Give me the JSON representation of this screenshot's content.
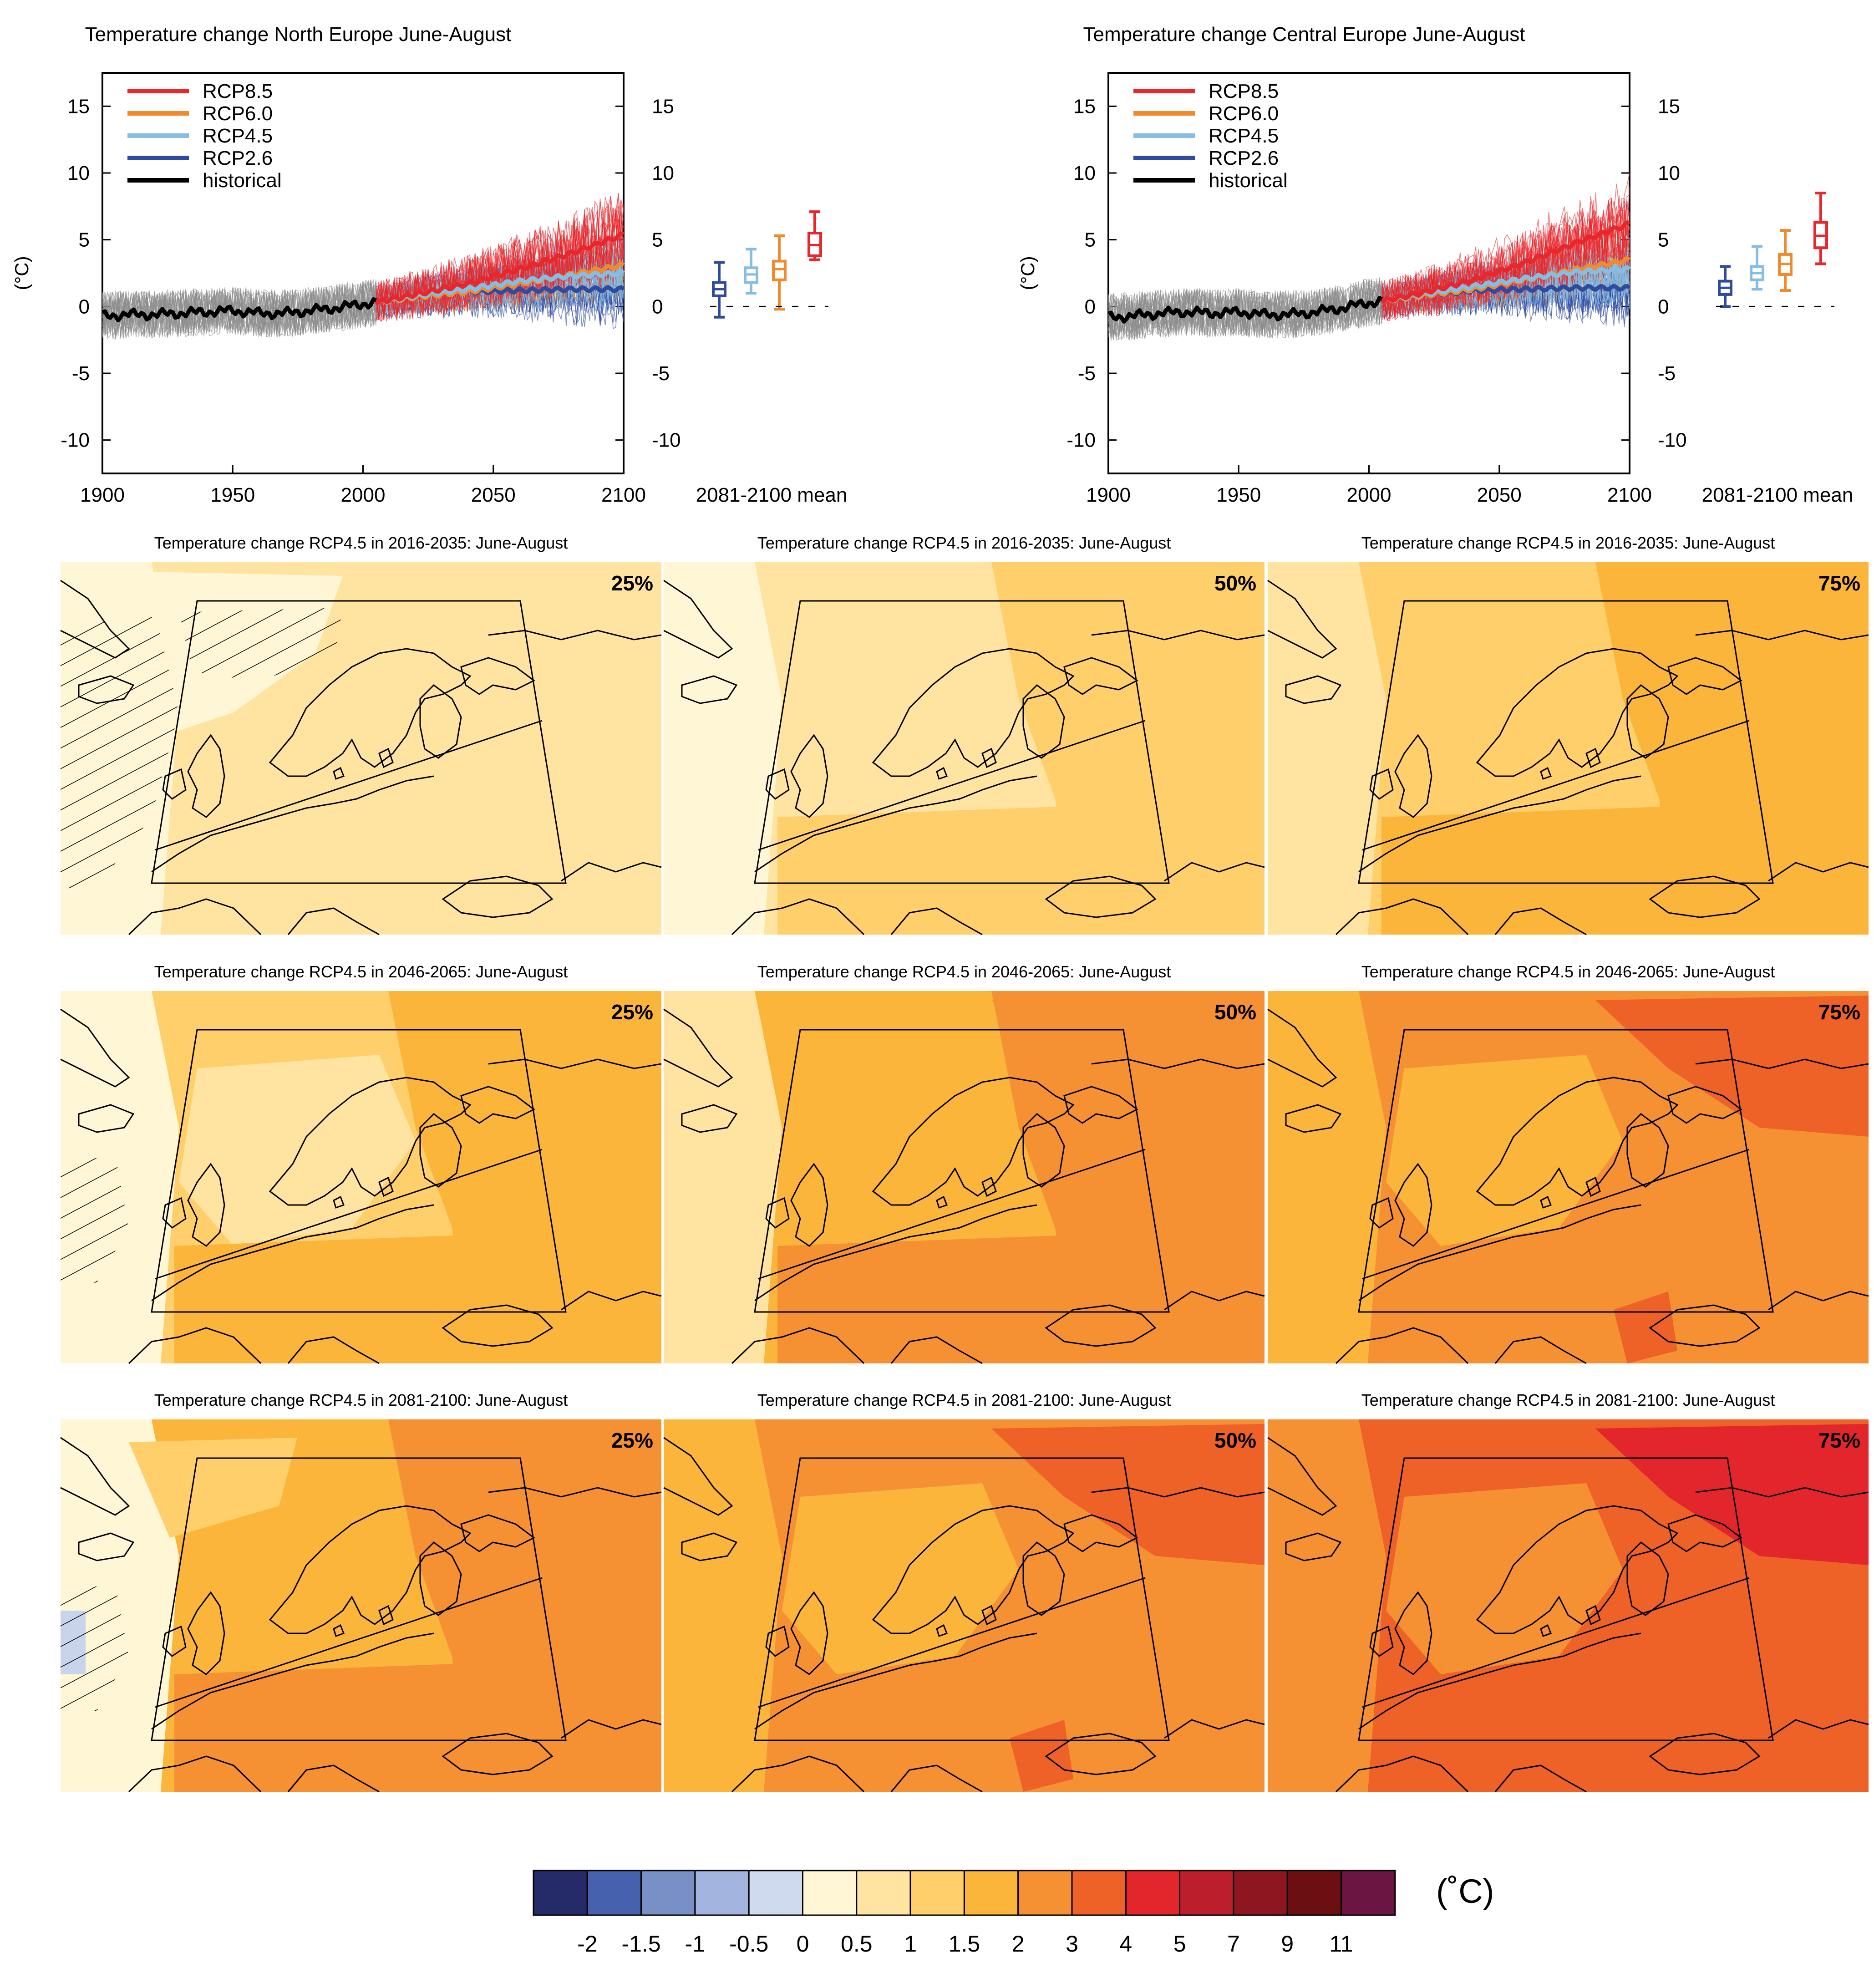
{
  "colors": {
    "rcp85": "#e8262b",
    "rcp60": "#f08a2c",
    "rcp45": "#86bde3",
    "rcp26": "#2f4ba0",
    "historical": "#000000",
    "hist_spread": "#8c8c8c"
  },
  "chart_data": [
    {
      "type": "line",
      "title": "Temperature change North Europe June-August",
      "ylabel": "(°C)",
      "xlim": [
        1900,
        2100
      ],
      "ylim": [
        -12.5,
        17.5
      ],
      "x_ticks": [
        "1900",
        "1950",
        "2000",
        "2050",
        "2100"
      ],
      "y_ticks": [
        "15",
        "10",
        "5",
        "0",
        "-5",
        "-10"
      ],
      "legend": [
        "RCP8.5",
        "RCP6.0",
        "RCP4.5",
        "RCP2.6",
        "historical"
      ],
      "legend_placement": "top-left",
      "boxplot_label": "2081-2100 mean",
      "series": [
        {
          "name": "historical",
          "x": [
            1900,
            1910,
            1920,
            1930,
            1940,
            1950,
            1960,
            1970,
            1980,
            1990,
            2000,
            2005
          ],
          "y": [
            -0.7,
            -0.6,
            -0.6,
            -0.5,
            -0.4,
            -0.3,
            -0.5,
            -0.5,
            -0.3,
            -0.1,
            0.2,
            0.3
          ]
        },
        {
          "name": "RCP2.6",
          "x": [
            2005,
            2020,
            2040,
            2060,
            2080,
            2100
          ],
          "y": [
            0.3,
            0.7,
            1.1,
            1.2,
            1.3,
            1.3
          ]
        },
        {
          "name": "RCP4.5",
          "x": [
            2005,
            2020,
            2040,
            2060,
            2080,
            2100
          ],
          "y": [
            0.3,
            0.8,
            1.3,
            1.9,
            2.3,
            2.5
          ]
        },
        {
          "name": "RCP6.0",
          "x": [
            2005,
            2020,
            2040,
            2060,
            2080,
            2100
          ],
          "y": [
            0.3,
            0.7,
            1.1,
            1.7,
            2.4,
            3.1
          ]
        },
        {
          "name": "RCP8.5",
          "x": [
            2005,
            2020,
            2040,
            2060,
            2080,
            2100
          ],
          "y": [
            0.3,
            0.9,
            1.7,
            2.8,
            4.0,
            5.4
          ]
        }
      ],
      "boxplots": [
        {
          "name": "RCP2.6",
          "min": -0.8,
          "q1": 0.8,
          "median": 1.3,
          "q3": 1.8,
          "max": 3.3
        },
        {
          "name": "RCP4.5",
          "min": 1.0,
          "q1": 1.8,
          "median": 2.4,
          "q3": 2.9,
          "max": 4.3
        },
        {
          "name": "RCP6.0",
          "min": -0.2,
          "q1": 2.0,
          "median": 2.8,
          "q3": 3.4,
          "max": 5.3
        },
        {
          "name": "RCP8.5",
          "min": 3.5,
          "q1": 3.8,
          "median": 4.6,
          "q3": 5.5,
          "max": 7.1
        }
      ]
    },
    {
      "type": "line",
      "title": "Temperature change Central Europe June-August",
      "ylabel": "(°C)",
      "xlim": [
        1900,
        2100
      ],
      "ylim": [
        -12.5,
        17.5
      ],
      "x_ticks": [
        "1900",
        "1950",
        "2000",
        "2050",
        "2100"
      ],
      "y_ticks": [
        "15",
        "10",
        "5",
        "0",
        "-5",
        "-10"
      ],
      "legend": [
        "RCP8.5",
        "RCP6.0",
        "RCP4.5",
        "RCP2.6",
        "historical"
      ],
      "legend_placement": "top-left",
      "boxplot_label": "2081-2100 mean",
      "series": [
        {
          "name": "historical",
          "x": [
            1900,
            1910,
            1920,
            1930,
            1940,
            1950,
            1960,
            1970,
            1980,
            1990,
            2000,
            2005
          ],
          "y": [
            -0.8,
            -0.7,
            -0.5,
            -0.4,
            -0.5,
            -0.4,
            -0.6,
            -0.6,
            -0.4,
            -0.1,
            0.3,
            0.4
          ]
        },
        {
          "name": "RCP2.6",
          "x": [
            2005,
            2020,
            2040,
            2060,
            2080,
            2100
          ],
          "y": [
            0.4,
            0.8,
            1.2,
            1.3,
            1.4,
            1.4
          ]
        },
        {
          "name": "RCP4.5",
          "x": [
            2005,
            2020,
            2040,
            2060,
            2080,
            2100
          ],
          "y": [
            0.4,
            0.9,
            1.5,
            2.1,
            2.6,
            2.8
          ]
        },
        {
          "name": "RCP6.0",
          "x": [
            2005,
            2020,
            2040,
            2060,
            2080,
            2100
          ],
          "y": [
            0.4,
            0.8,
            1.3,
            2.0,
            2.8,
            3.5
          ]
        },
        {
          "name": "RCP8.5",
          "x": [
            2005,
            2020,
            2040,
            2060,
            2080,
            2100
          ],
          "y": [
            0.4,
            1.0,
            2.0,
            3.3,
            4.8,
            6.2
          ]
        }
      ],
      "boxplots": [
        {
          "name": "RCP2.6",
          "min": 0.0,
          "q1": 0.9,
          "median": 1.4,
          "q3": 1.9,
          "max": 3.0
        },
        {
          "name": "RCP4.5",
          "min": 1.3,
          "q1": 2.0,
          "median": 2.5,
          "q3": 3.0,
          "max": 4.5
        },
        {
          "name": "RCP6.0",
          "min": 1.2,
          "q1": 2.4,
          "median": 3.2,
          "q3": 3.9,
          "max": 5.7
        },
        {
          "name": "RCP8.5",
          "min": 3.2,
          "q1": 4.4,
          "median": 5.3,
          "q3": 6.3,
          "max": 8.5
        }
      ]
    }
  ],
  "maps": {
    "rows": [
      {
        "title": "Temperature change RCP4.5 in 2016-2035: June-August"
      },
      {
        "title": "Temperature change RCP4.5 in 2046-2065: June-August"
      },
      {
        "title": "Temperature change RCP4.5 in 2081-2100: June-August"
      }
    ],
    "percentiles": [
      "25%",
      "50%",
      "75%"
    ],
    "panels": [
      {
        "row": 0,
        "col": 0,
        "base": "#ffe3a0",
        "patches": [
          [
            "#fff6d6",
            "west-sea"
          ],
          [
            "#fff6d6",
            "norway-sea"
          ]
        ],
        "hatch": true
      },
      {
        "row": 0,
        "col": 1,
        "base": "#ffe3a0",
        "patches": [
          [
            "#fff6d6",
            "west-sea"
          ],
          [
            "#ffcf6b",
            "east-land"
          ],
          [
            "#ffcf6b",
            "south"
          ]
        ],
        "hatch": false
      },
      {
        "row": 0,
        "col": 2,
        "base": "#ffcf6b",
        "patches": [
          [
            "#ffe3a0",
            "west-sea"
          ],
          [
            "#fbb53a",
            "east-land"
          ],
          [
            "#fbb53a",
            "south"
          ]
        ],
        "hatch": false
      },
      {
        "row": 1,
        "col": 0,
        "base": "#ffcf6b",
        "patches": [
          [
            "#fff6d6",
            "west-sea"
          ],
          [
            "#ffe3a0",
            "central"
          ],
          [
            "#fbb53a",
            "east-land"
          ],
          [
            "#fbb53a",
            "south"
          ]
        ],
        "hatch": true
      },
      {
        "row": 1,
        "col": 1,
        "base": "#fbb53a",
        "patches": [
          [
            "#ffe3a0",
            "west-sea"
          ],
          [
            "#f59133",
            "east-land"
          ],
          [
            "#f59133",
            "south"
          ],
          [
            "#f59133",
            "north-east"
          ]
        ],
        "hatch": false
      },
      {
        "row": 1,
        "col": 2,
        "base": "#f59133",
        "patches": [
          [
            "#fbb53a",
            "west-sea"
          ],
          [
            "#fbb53a",
            "central"
          ],
          [
            "#ee6127",
            "north-east"
          ],
          [
            "#ee6127",
            "south-spot"
          ]
        ],
        "hatch": false
      },
      {
        "row": 2,
        "col": 0,
        "base": "#fbb53a",
        "patches": [
          [
            "#fff6d6",
            "west-sea"
          ],
          [
            "#ffcf6b",
            "north-sea"
          ],
          [
            "#f59133",
            "east-land"
          ],
          [
            "#f59133",
            "south"
          ],
          [
            "#c9d3ec",
            "west-spot"
          ]
        ],
        "hatch": true
      },
      {
        "row": 2,
        "col": 1,
        "base": "#f59133",
        "patches": [
          [
            "#fbb53a",
            "west-sea"
          ],
          [
            "#fbb53a",
            "central"
          ],
          [
            "#ee6127",
            "north-east"
          ],
          [
            "#ee6127",
            "south-spot"
          ]
        ],
        "hatch": false
      },
      {
        "row": 2,
        "col": 2,
        "base": "#ee6127",
        "patches": [
          [
            "#f59133",
            "central"
          ],
          [
            "#f59133",
            "west-sea"
          ],
          [
            "#e2262b",
            "north-east"
          ]
        ],
        "hatch": false
      }
    ]
  },
  "colorbar": {
    "unit": "(˚C)",
    "colors": [
      "#252b68",
      "#4662ae",
      "#7990c7",
      "#a3b4de",
      "#d0daee",
      "#fff6d6",
      "#ffe3a0",
      "#ffcf6b",
      "#fbb53a",
      "#f59133",
      "#ee6127",
      "#e2262b",
      "#bd1e2b",
      "#8e1620",
      "#6b0f13",
      "#6b1543"
    ],
    "ticks": [
      "-2",
      "-1.5",
      "-1",
      "-0.5",
      "0",
      "0.5",
      "1",
      "1.5",
      "2",
      "3",
      "4",
      "5",
      "7",
      "9",
      "11"
    ]
  }
}
